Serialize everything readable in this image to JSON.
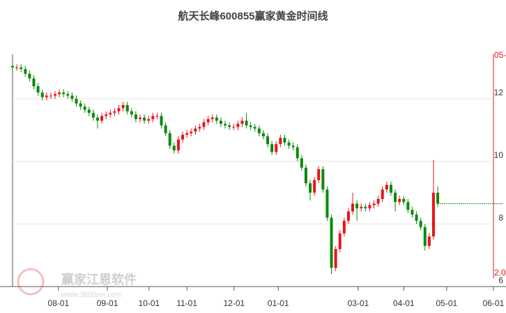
{
  "chart_data": {
    "type": "candlestick",
    "title": "航天长峰600855赢家黄金时间线",
    "watermark": [
      "赢家江恩软件",
      "www.3600nn.com"
    ],
    "annotations": [
      "05-",
      "2.0"
    ],
    "up_color": "#e8141c",
    "down_color": "#0a8a0a",
    "ylim": [
      6,
      13.5
    ],
    "yticks": [
      6,
      8,
      10,
      12
    ],
    "grid": true,
    "xlim": [
      0,
      115.4
    ],
    "xticks": [
      {
        "value": 10.8,
        "label": "08-01"
      },
      {
        "value": 22.3,
        "label": "09-01"
      },
      {
        "value": 32.1,
        "label": "10-01"
      },
      {
        "value": 41.0,
        "label": "11-01"
      },
      {
        "value": 52.1,
        "label": "12-01"
      },
      {
        "value": 62.5,
        "label": "01-01"
      },
      {
        "value": 81.3,
        "label": "03-01"
      },
      {
        "value": 92.0,
        "label": "04-01"
      },
      {
        "value": 102.1,
        "label": "05-01"
      },
      {
        "value": 113.1,
        "label": "06-01"
      }
    ],
    "open": [
      13.05,
      13.0,
      13.0,
      12.95,
      12.8,
      12.65,
      12.4,
      12.2,
      12.05,
      12.1,
      12.1,
      12.15,
      12.2,
      12.15,
      12.1,
      12.0,
      11.85,
      11.75,
      11.65,
      11.55,
      11.4,
      11.3,
      11.45,
      11.5,
      11.55,
      11.6,
      11.7,
      11.8,
      11.6,
      11.5,
      11.35,
      11.4,
      11.3,
      11.35,
      11.45,
      11.45,
      11.15,
      10.9,
      10.5,
      10.35,
      10.7,
      10.85,
      10.9,
      10.95,
      11.05,
      11.1,
      11.25,
      11.35,
      11.4,
      11.3,
      11.2,
      11.15,
      11.1,
      11.1,
      11.2,
      11.3,
      11.15,
      11.1,
      11.05,
      10.9,
      10.8,
      10.55,
      10.3,
      10.55,
      10.75,
      10.6,
      10.5,
      10.45,
      10.1,
      9.8,
      9.3,
      9.0,
      9.4,
      9.75,
      9.1,
      8.2,
      6.6,
      7.2,
      7.7,
      8.1,
      8.4,
      8.65,
      8.5,
      8.55,
      8.5,
      8.6,
      8.65,
      8.8,
      9.1,
      9.25,
      9.0,
      8.7,
      8.8,
      8.7,
      8.45,
      8.3,
      8.1,
      7.9,
      7.3,
      7.6,
      9.0
    ],
    "high": [
      13.15,
      13.1,
      13.1,
      13.05,
      12.9,
      12.75,
      12.5,
      12.3,
      12.2,
      12.2,
      12.25,
      12.3,
      12.3,
      12.25,
      12.2,
      12.1,
      11.95,
      11.85,
      11.75,
      11.65,
      11.5,
      11.55,
      11.6,
      11.65,
      11.7,
      11.8,
      11.9,
      11.9,
      11.7,
      11.6,
      11.5,
      11.5,
      11.45,
      11.55,
      11.55,
      11.55,
      11.25,
      11.0,
      10.6,
      10.8,
      10.95,
      11.0,
      11.05,
      11.15,
      11.2,
      11.35,
      11.45,
      11.5,
      11.5,
      11.4,
      11.3,
      11.25,
      11.2,
      11.3,
      11.4,
      11.55,
      11.25,
      11.2,
      11.15,
      11.0,
      10.9,
      10.65,
      10.65,
      10.85,
      10.85,
      10.7,
      10.6,
      10.55,
      10.2,
      9.9,
      9.4,
      9.5,
      9.85,
      9.85,
      9.2,
      8.3,
      7.3,
      7.8,
      8.2,
      8.5,
      9.0,
      8.75,
      8.65,
      8.65,
      8.7,
      8.75,
      8.9,
      9.2,
      9.35,
      9.35,
      9.1,
      8.9,
      8.9,
      8.8,
      8.55,
      8.4,
      8.2,
      8.0,
      7.7,
      10.05,
      9.2
    ],
    "low": [
      12.9,
      12.9,
      12.85,
      12.7,
      12.55,
      12.3,
      12.1,
      11.95,
      11.95,
      12.0,
      12.0,
      12.05,
      12.05,
      12.0,
      11.9,
      11.75,
      11.65,
      11.55,
      11.45,
      11.3,
      11.05,
      11.2,
      11.35,
      11.4,
      11.45,
      11.5,
      11.6,
      11.5,
      11.4,
      11.25,
      11.25,
      11.2,
      11.2,
      11.25,
      11.35,
      11.05,
      10.8,
      10.4,
      10.25,
      10.25,
      10.6,
      10.75,
      10.8,
      10.85,
      10.95,
      11.0,
      11.15,
      11.25,
      11.2,
      11.1,
      11.05,
      11.0,
      11.0,
      11.0,
      11.1,
      11.05,
      11.0,
      10.95,
      10.8,
      10.7,
      10.45,
      10.2,
      10.2,
      10.45,
      10.5,
      10.4,
      10.35,
      10.0,
      9.7,
      9.2,
      8.75,
      8.9,
      9.3,
      9.0,
      8.1,
      6.4,
      6.5,
      7.1,
      7.6,
      8.0,
      8.3,
      8.1,
      8.4,
      8.4,
      8.4,
      8.5,
      8.55,
      8.7,
      9.0,
      8.9,
      8.4,
      8.6,
      8.6,
      8.35,
      8.2,
      8.0,
      7.8,
      7.15,
      7.2,
      7.5,
      8.55
    ],
    "close": [
      13.0,
      13.0,
      12.95,
      12.8,
      12.65,
      12.4,
      12.2,
      12.05,
      12.1,
      12.1,
      12.15,
      12.2,
      12.15,
      12.1,
      12.0,
      11.85,
      11.75,
      11.65,
      11.55,
      11.4,
      11.3,
      11.45,
      11.5,
      11.55,
      11.6,
      11.7,
      11.8,
      11.6,
      11.5,
      11.35,
      11.4,
      11.3,
      11.35,
      11.45,
      11.45,
      11.15,
      10.9,
      10.5,
      10.35,
      10.7,
      10.85,
      10.9,
      10.95,
      11.05,
      11.1,
      11.25,
      11.35,
      11.4,
      11.3,
      11.2,
      11.15,
      11.1,
      11.1,
      11.2,
      11.3,
      11.15,
      11.1,
      11.05,
      10.9,
      10.8,
      10.55,
      10.3,
      10.55,
      10.75,
      10.6,
      10.5,
      10.45,
      10.1,
      9.8,
      9.3,
      9.0,
      9.4,
      9.75,
      9.1,
      8.2,
      6.6,
      7.2,
      7.7,
      8.1,
      8.4,
      8.65,
      8.5,
      8.55,
      8.5,
      8.6,
      8.65,
      8.8,
      9.1,
      9.25,
      9.0,
      8.7,
      8.8,
      8.7,
      8.45,
      8.3,
      8.1,
      7.9,
      7.3,
      7.6,
      9.0,
      8.65
    ]
  }
}
